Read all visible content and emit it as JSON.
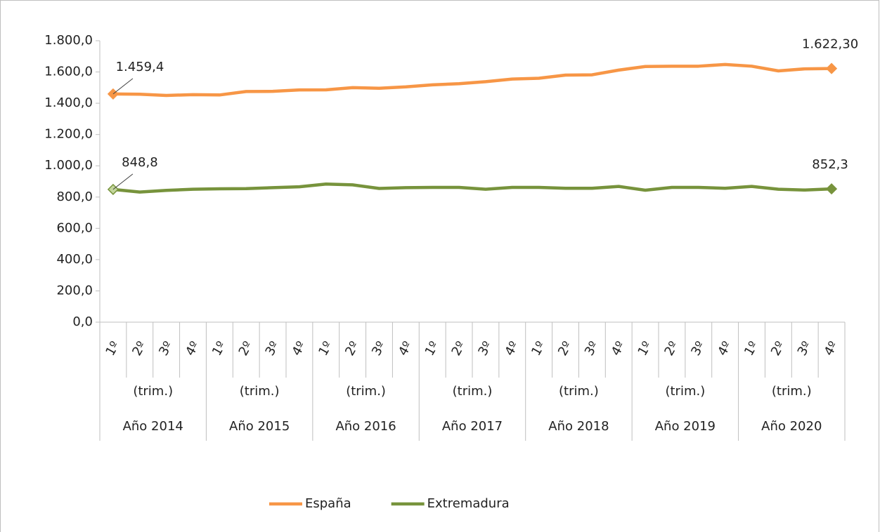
{
  "chart_data": {
    "type": "line",
    "categories": [
      "1º",
      "2º",
      "3º",
      "4º",
      "1º",
      "2º",
      "3º",
      "4º",
      "1º",
      "2º",
      "3º",
      "4º",
      "1º",
      "2º",
      "3º",
      "4º",
      "1º",
      "2º",
      "3º",
      "4º",
      "1º",
      "2º",
      "3º",
      "4º",
      "1º",
      "2º",
      "3º",
      "4º"
    ],
    "category_groups": [
      {
        "sublabel": "(trim.)",
        "label": "Año 2014"
      },
      {
        "sublabel": "(trim.)",
        "label": "Año 2015"
      },
      {
        "sublabel": "(trim.)",
        "label": "Año 2016"
      },
      {
        "sublabel": "(trim.)",
        "label": "Año 2017"
      },
      {
        "sublabel": "(trim.)",
        "label": "Año 2018"
      },
      {
        "sublabel": "(trim.)",
        "label": "Año 2019"
      },
      {
        "sublabel": "(trim.)",
        "label": "Año 2020"
      }
    ],
    "series": [
      {
        "name": "España",
        "color": "#f79646",
        "values": [
          1459.4,
          1458,
          1450,
          1455,
          1453,
          1475,
          1476,
          1485,
          1486,
          1500,
          1496,
          1505,
          1518,
          1525,
          1538,
          1555,
          1560,
          1580,
          1582,
          1612,
          1635,
          1637,
          1637,
          1648,
          1637,
          1607,
          1620,
          1622.3
        ],
        "value_labels": [
          "1.459,4",
          null,
          null,
          null,
          null,
          null,
          null,
          null,
          null,
          null,
          null,
          null,
          null,
          null,
          null,
          null,
          null,
          null,
          null,
          null,
          null,
          null,
          null,
          null,
          null,
          null,
          null,
          "1.622,30"
        ]
      },
      {
        "name": "Extremadura",
        "color": "#77933c",
        "values": [
          848.8,
          832,
          843,
          850,
          853,
          854,
          860,
          866,
          883,
          878,
          855,
          860,
          862,
          862,
          850,
          862,
          862,
          856,
          856,
          868,
          844,
          862,
          862,
          856,
          868,
          850,
          845,
          852.3
        ],
        "value_labels": [
          "848,8",
          null,
          null,
          null,
          null,
          null,
          null,
          null,
          null,
          null,
          null,
          null,
          null,
          null,
          null,
          null,
          null,
          null,
          null,
          null,
          null,
          null,
          null,
          null,
          null,
          null,
          null,
          "852,3"
        ]
      }
    ],
    "ylim": [
      0,
      1800
    ],
    "yticks": [
      {
        "value": 0,
        "label": "0,0"
      },
      {
        "value": 200,
        "label": "200,0"
      },
      {
        "value": 400,
        "label": "400,0"
      },
      {
        "value": 600,
        "label": "600,0"
      },
      {
        "value": 800,
        "label": "800,0"
      },
      {
        "value": 1000,
        "label": "1.000,0"
      },
      {
        "value": 1200,
        "label": "1.200,0"
      },
      {
        "value": 1400,
        "label": "1.400,0"
      },
      {
        "value": 1600,
        "label": "1.600,0"
      },
      {
        "value": 1800,
        "label": "1.800,0"
      }
    ],
    "grid": false,
    "legend": "bottom"
  }
}
